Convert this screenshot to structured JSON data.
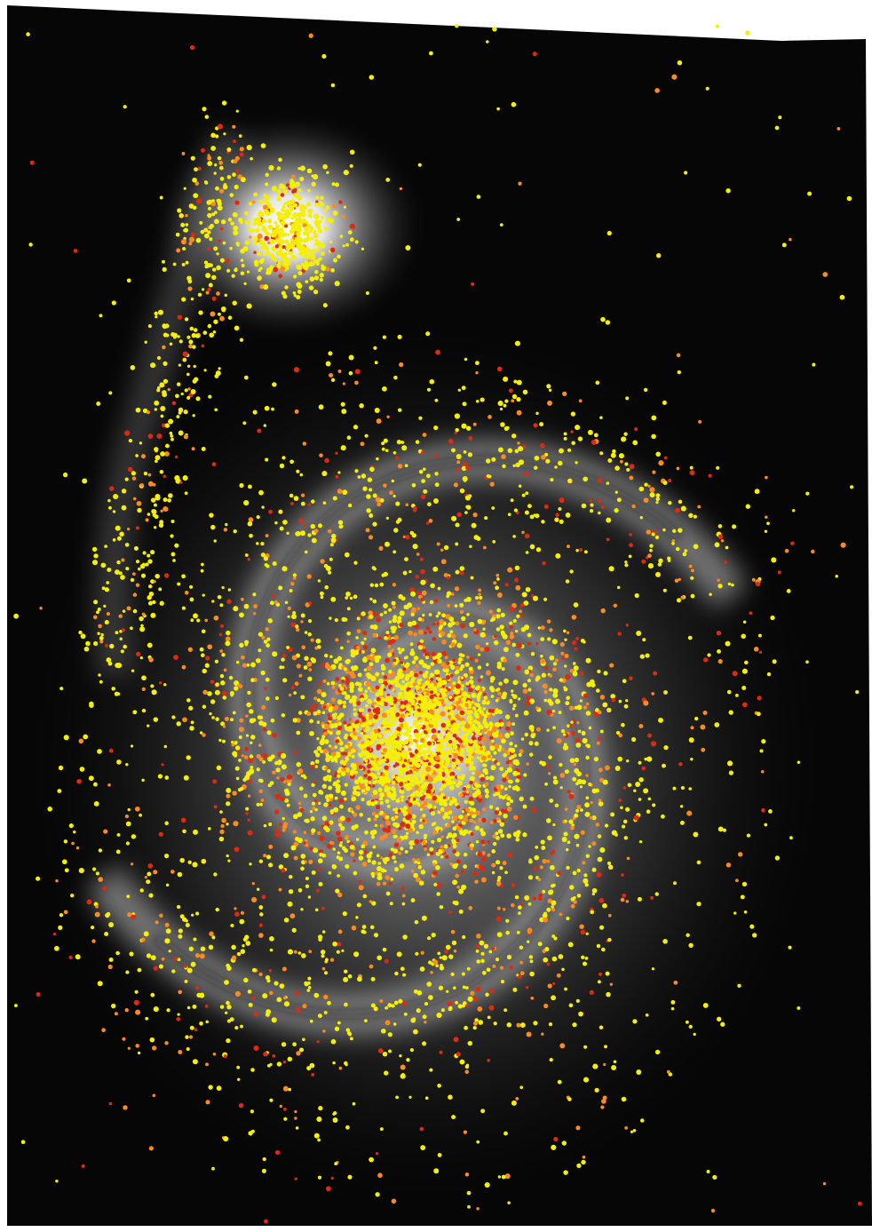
{
  "image": {
    "subject": "interacting-spiral-galaxy-pair",
    "colors": {
      "background": "#ffffff",
      "sky": "#060606",
      "galaxy_glow": "#bfbfbf",
      "dust_lane": "#1a1a1a",
      "marker_yellow": "#f5f000",
      "marker_orange": "#ff8a1e",
      "marker_red": "#e02a10"
    },
    "marker_classes": [
      "yellow",
      "orange",
      "red"
    ]
  }
}
